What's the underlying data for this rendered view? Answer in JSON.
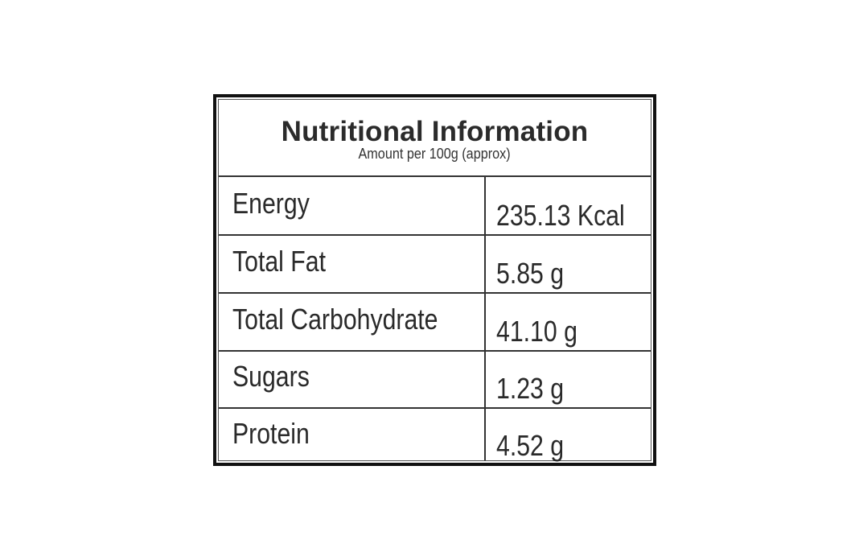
{
  "title": "Nutritional Information",
  "subtitle": "Amount per 100g (approx)",
  "rows": [
    {
      "label": "Energy",
      "value": "235.13 Kcal"
    },
    {
      "label": "Total Fat",
      "value": "5.85 g"
    },
    {
      "label": "Total Carbohydrate",
      "value": "41.10 g"
    },
    {
      "label": "Sugars",
      "value": "1.23 g"
    },
    {
      "label": "Protein",
      "value": "4.52 g"
    }
  ]
}
